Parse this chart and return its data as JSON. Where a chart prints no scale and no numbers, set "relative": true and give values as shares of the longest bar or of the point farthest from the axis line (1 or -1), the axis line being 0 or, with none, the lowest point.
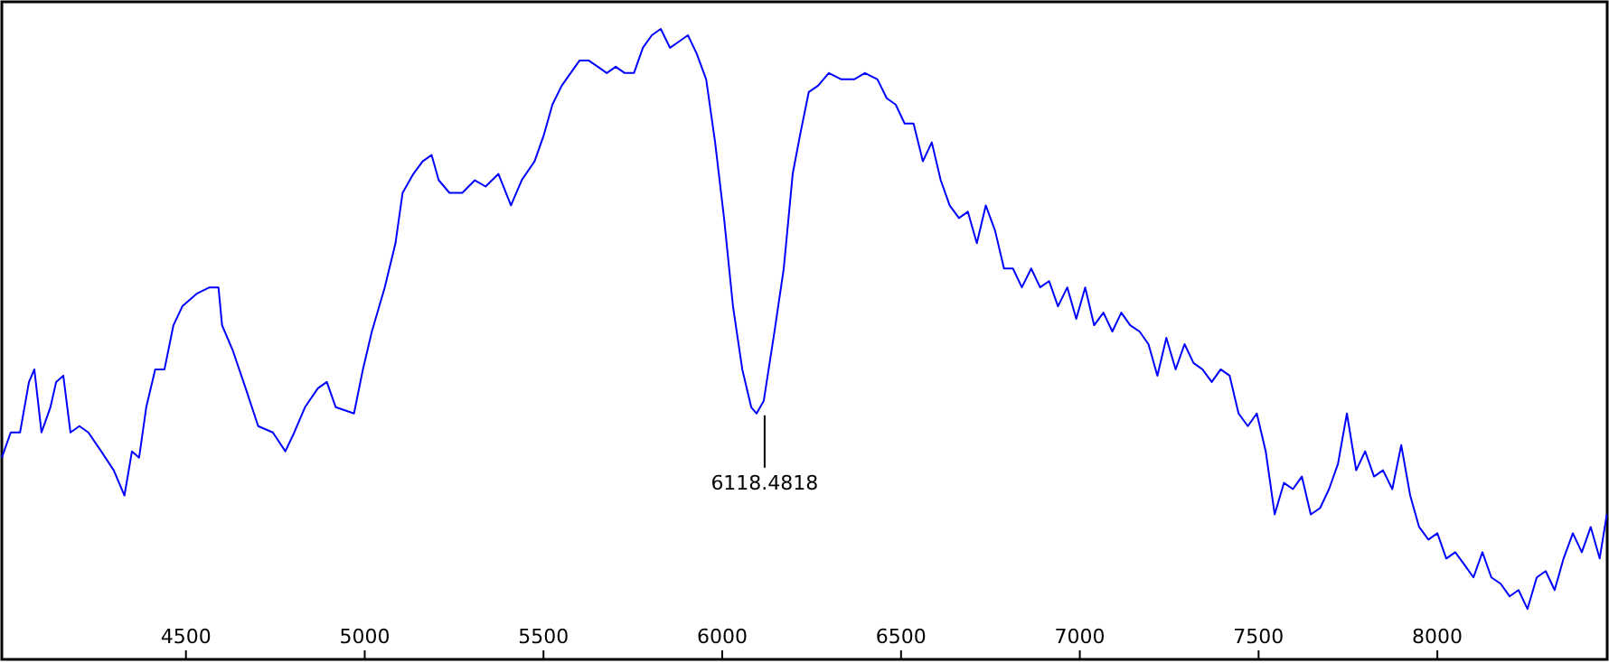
{
  "chart_data": {
    "type": "line",
    "relative": true,
    "xlim": [
      3985,
      8475
    ],
    "xticks": [
      4500,
      5000,
      5500,
      6000,
      6500,
      7000,
      7500,
      8000
    ],
    "grid": false,
    "marker": "none",
    "line_style": "solid",
    "annotations": [
      {
        "text": "6118.4818",
        "x": 6118.4818,
        "y": 0.39
      }
    ],
    "series": [
      {
        "color": "#0000ff",
        "x": [
          3985,
          4010,
          4036,
          4061,
          4076,
          4096,
          4121,
          4137,
          4157,
          4177,
          4202,
          4227,
          4263,
          4298,
          4328,
          4349,
          4369,
          4389,
          4414,
          4440,
          4465,
          4490,
          4530,
          4566,
          4591,
          4601,
          4631,
          4667,
          4702,
          4743,
          4778,
          4803,
          4833,
          4869,
          4894,
          4919,
          4970,
          4995,
          5020,
          5056,
          5086,
          5106,
          5136,
          5162,
          5187,
          5207,
          5237,
          5273,
          5308,
          5338,
          5374,
          5409,
          5439,
          5475,
          5500,
          5525,
          5551,
          5576,
          5601,
          5626,
          5652,
          5677,
          5702,
          5727,
          5753,
          5778,
          5803,
          5828,
          5854,
          5879,
          5904,
          5929,
          5955,
          5980,
          6005,
          6030,
          6056,
          6081,
          6096,
          6116,
          6146,
          6172,
          6197,
          6217,
          6242,
          6268,
          6298,
          6333,
          6369,
          6399,
          6434,
          6460,
          6485,
          6510,
          6535,
          6561,
          6586,
          6611,
          6636,
          6662,
          6687,
          6712,
          6737,
          6763,
          6788,
          6813,
          6838,
          6864,
          6889,
          6914,
          6939,
          6965,
          6990,
          7015,
          7040,
          7066,
          7091,
          7116,
          7141,
          7167,
          7192,
          7217,
          7242,
          7268,
          7293,
          7318,
          7343,
          7369,
          7394,
          7419,
          7444,
          7470,
          7495,
          7520,
          7545,
          7571,
          7596,
          7621,
          7646,
          7672,
          7697,
          7722,
          7747,
          7773,
          7798,
          7823,
          7848,
          7874,
          7899,
          7924,
          7949,
          7975,
          8000,
          8025,
          8050,
          8076,
          8101,
          8126,
          8151,
          8177,
          8202,
          8227,
          8252,
          8278,
          8303,
          8328,
          8353,
          8379,
          8404,
          8429,
          8454,
          8474
        ],
        "values": [
          0.32,
          0.36,
          0.36,
          0.44,
          0.46,
          0.36,
          0.4,
          0.44,
          0.45,
          0.36,
          0.37,
          0.36,
          0.33,
          0.3,
          0.26,
          0.33,
          0.32,
          0.4,
          0.46,
          0.46,
          0.53,
          0.56,
          0.58,
          0.59,
          0.59,
          0.53,
          0.49,
          0.43,
          0.37,
          0.36,
          0.33,
          0.36,
          0.4,
          0.43,
          0.44,
          0.4,
          0.39,
          0.46,
          0.52,
          0.59,
          0.66,
          0.74,
          0.77,
          0.79,
          0.8,
          0.76,
          0.74,
          0.74,
          0.76,
          0.75,
          0.77,
          0.72,
          0.76,
          0.79,
          0.83,
          0.88,
          0.91,
          0.93,
          0.95,
          0.95,
          0.94,
          0.93,
          0.94,
          0.93,
          0.93,
          0.97,
          0.99,
          1.0,
          0.97,
          0.98,
          0.99,
          0.96,
          0.92,
          0.82,
          0.7,
          0.56,
          0.46,
          0.4,
          0.39,
          0.41,
          0.52,
          0.62,
          0.77,
          0.83,
          0.9,
          0.91,
          0.93,
          0.92,
          0.92,
          0.93,
          0.92,
          0.89,
          0.88,
          0.85,
          0.85,
          0.79,
          0.82,
          0.76,
          0.72,
          0.7,
          0.71,
          0.66,
          0.72,
          0.68,
          0.62,
          0.62,
          0.59,
          0.62,
          0.59,
          0.6,
          0.56,
          0.59,
          0.54,
          0.59,
          0.53,
          0.55,
          0.52,
          0.55,
          0.53,
          0.52,
          0.5,
          0.45,
          0.51,
          0.46,
          0.5,
          0.47,
          0.46,
          0.44,
          0.46,
          0.45,
          0.39,
          0.37,
          0.39,
          0.33,
          0.23,
          0.28,
          0.27,
          0.29,
          0.23,
          0.24,
          0.27,
          0.31,
          0.39,
          0.3,
          0.33,
          0.29,
          0.3,
          0.27,
          0.34,
          0.26,
          0.21,
          0.19,
          0.2,
          0.16,
          0.17,
          0.15,
          0.13,
          0.17,
          0.13,
          0.12,
          0.1,
          0.11,
          0.08,
          0.13,
          0.14,
          0.11,
          0.16,
          0.2,
          0.17,
          0.21,
          0.16,
          0.23
        ]
      }
    ]
  }
}
